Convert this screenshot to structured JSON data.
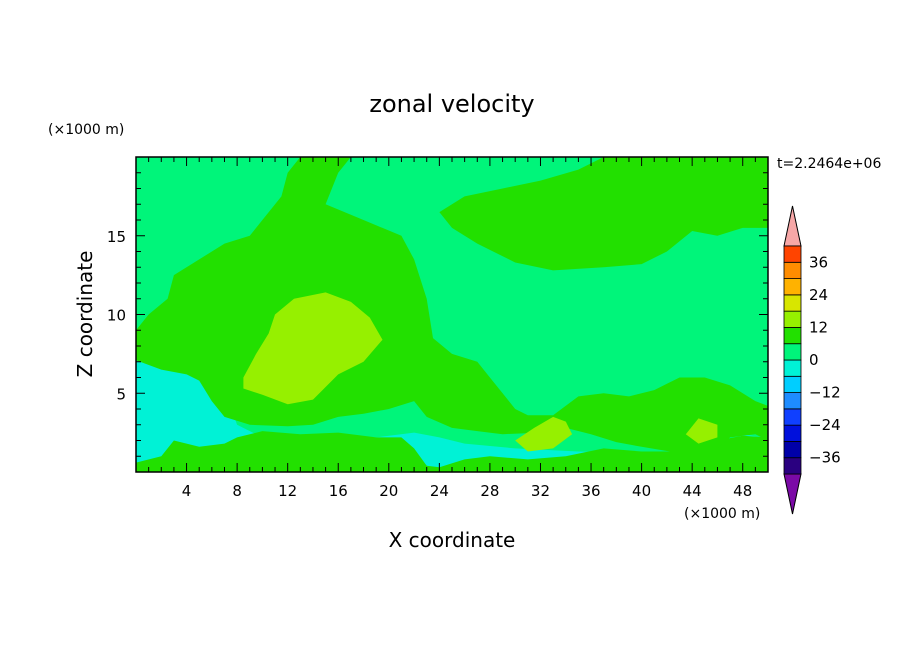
{
  "chart_data": {
    "type": "heatmap",
    "title": "zonal velocity",
    "xlabel": "X coordinate",
    "ylabel": "Z coordinate",
    "x_unit": "(×1000 m)",
    "y_unit": "(×1000 m)",
    "time_label": "t=2.2464e+06",
    "xlim": [
      0,
      50
    ],
    "ylim": [
      0,
      20
    ],
    "x_ticks": [
      4,
      8,
      12,
      16,
      20,
      24,
      28,
      32,
      36,
      40,
      44,
      48
    ],
    "y_ticks": [
      5,
      10,
      15
    ],
    "colorbar": {
      "levels": [
        -42,
        -36,
        -30,
        -24,
        -18,
        -12,
        -6,
        0,
        6,
        12,
        18,
        24,
        30,
        36,
        42
      ],
      "colors": [
        "#7b0aa6",
        "#2a0080",
        "#0000a8",
        "#0010dc",
        "#1040ff",
        "#1e8cff",
        "#00ceff",
        "#00f2d6",
        "#00f57a",
        "#22e000",
        "#96f000",
        "#d8e600",
        "#ffb200",
        "#ff8c00",
        "#ff4400",
        "#ff1a10",
        "#f7a7a7"
      ],
      "tick_labels": [
        {
          "value": 36,
          "label": "36"
        },
        {
          "value": 24,
          "label": "24"
        },
        {
          "value": 12,
          "label": "12"
        },
        {
          "value": 0,
          "label": "0"
        },
        {
          "value": -12,
          "label": "−12"
        },
        {
          "value": -24,
          "label": "−24"
        },
        {
          "value": -36,
          "label": "−36"
        }
      ]
    },
    "field_regions": [
      {
        "level": 0,
        "note": "background band (0 to 6)",
        "points": [
          [
            0,
            0
          ],
          [
            50,
            0
          ],
          [
            50,
            20
          ],
          [
            0,
            20
          ]
        ]
      },
      {
        "level": -6,
        "note": "cyan-green band near bottom",
        "points": [
          [
            0,
            7.5
          ],
          [
            1,
            7.2
          ],
          [
            2.5,
            7.5
          ],
          [
            4.5,
            7
          ],
          [
            6,
            6
          ],
          [
            7,
            5.2
          ],
          [
            8,
            3
          ],
          [
            10,
            2.2
          ],
          [
            13,
            2
          ],
          [
            16,
            2.4
          ],
          [
            19,
            2.2
          ],
          [
            22,
            2.5
          ],
          [
            24,
            2.2
          ],
          [
            26,
            1.8
          ],
          [
            30,
            1.5
          ],
          [
            35,
            1.3
          ],
          [
            40,
            1.2
          ],
          [
            44,
            1.4
          ],
          [
            47,
            1.8
          ],
          [
            48,
            2.4
          ],
          [
            49.5,
            2.2
          ],
          [
            50,
            1.8
          ],
          [
            50,
            0
          ],
          [
            0,
            0
          ]
        ]
      },
      {
        "level": 6,
        "note": "lower green region",
        "points": [
          [
            0,
            0.6
          ],
          [
            2,
            1
          ],
          [
            3,
            2
          ],
          [
            5,
            1.6
          ],
          [
            7,
            1.8
          ],
          [
            8,
            2.2
          ],
          [
            10,
            2.6
          ],
          [
            13,
            2.4
          ],
          [
            16,
            2.5
          ],
          [
            19,
            2.2
          ],
          [
            21,
            2.2
          ],
          [
            22,
            1.5
          ],
          [
            23,
            0.4
          ],
          [
            24,
            0.3
          ],
          [
            26,
            0.8
          ],
          [
            28,
            1.0
          ],
          [
            31,
            0.8
          ],
          [
            34,
            1.0
          ],
          [
            37,
            1.5
          ],
          [
            40,
            1.3
          ],
          [
            43,
            1.3
          ],
          [
            46,
            2.0
          ],
          [
            48,
            2.3
          ],
          [
            50,
            2.2
          ],
          [
            50,
            0
          ],
          [
            0,
            0
          ]
        ]
      },
      {
        "level": 6,
        "note": "main green region",
        "points": [
          [
            0,
            9
          ],
          [
            1,
            10
          ],
          [
            2.5,
            11
          ],
          [
            3,
            12.5
          ],
          [
            5,
            13.5
          ],
          [
            7,
            14.5
          ],
          [
            9,
            15
          ],
          [
            10,
            16
          ],
          [
            11.5,
            17.5
          ],
          [
            12,
            19
          ],
          [
            13,
            20
          ],
          [
            17,
            20
          ],
          [
            16,
            19
          ],
          [
            15,
            17
          ],
          [
            18,
            16
          ],
          [
            21,
            15
          ],
          [
            22,
            13.5
          ],
          [
            23,
            11
          ],
          [
            23.5,
            8.5
          ],
          [
            25,
            7.5
          ],
          [
            27,
            7
          ],
          [
            28,
            6
          ],
          [
            29,
            5
          ],
          [
            30,
            4
          ],
          [
            31,
            3.6
          ],
          [
            33,
            3.6
          ],
          [
            35,
            4.8
          ],
          [
            37,
            5.0
          ],
          [
            39,
            4.8
          ],
          [
            41,
            5.2
          ],
          [
            42,
            5.6
          ],
          [
            43,
            6
          ],
          [
            45,
            6
          ],
          [
            47,
            5.5
          ],
          [
            49,
            4.5
          ],
          [
            50,
            4.2
          ],
          [
            50,
            2
          ],
          [
            49,
            2.4
          ],
          [
            47,
            2.2
          ],
          [
            46,
            1.5
          ],
          [
            43,
            1.2
          ],
          [
            40,
            1.6
          ],
          [
            38,
            1.9
          ],
          [
            36,
            2.4
          ],
          [
            34,
            2.8
          ],
          [
            32,
            2.5
          ],
          [
            29,
            2.4
          ],
          [
            27,
            2.6
          ],
          [
            25,
            2.8
          ],
          [
            23,
            3.5
          ],
          [
            22,
            4.5
          ],
          [
            20,
            4.0
          ],
          [
            18,
            3.7
          ],
          [
            16,
            3.5
          ],
          [
            14,
            3.0
          ],
          [
            12,
            2.9
          ],
          [
            9,
            3.0
          ],
          [
            7,
            3.5
          ],
          [
            6,
            4.5
          ],
          [
            5,
            5.8
          ],
          [
            4,
            6.2
          ],
          [
            2,
            6.5
          ],
          [
            0,
            7.1
          ]
        ]
      },
      {
        "level": 6,
        "note": "upper-right green region",
        "points": [
          [
            24,
            16.5
          ],
          [
            26,
            17.5
          ],
          [
            29,
            18
          ],
          [
            32,
            18.5
          ],
          [
            35,
            19.2
          ],
          [
            37,
            20
          ],
          [
            50,
            20
          ],
          [
            50,
            15.5
          ],
          [
            48,
            15.5
          ],
          [
            46,
            15
          ],
          [
            44,
            15.3
          ],
          [
            42,
            14
          ],
          [
            40,
            13.2
          ],
          [
            37,
            13
          ],
          [
            33,
            12.8
          ],
          [
            30,
            13.3
          ],
          [
            27,
            14.5
          ],
          [
            25,
            15.5
          ]
        ]
      },
      {
        "level": 12,
        "note": "yellow-green patch",
        "points": [
          [
            8.5,
            6
          ],
          [
            9.5,
            7.5
          ],
          [
            10.5,
            8.8
          ],
          [
            11,
            10
          ],
          [
            12.5,
            11
          ],
          [
            15,
            11.4
          ],
          [
            17,
            10.8
          ],
          [
            18.5,
            9.8
          ],
          [
            19.5,
            8.4
          ],
          [
            18,
            7
          ],
          [
            16,
            6.2
          ],
          [
            14,
            4.6
          ],
          [
            12,
            4.3
          ],
          [
            10,
            4.9
          ],
          [
            8.5,
            5.3
          ]
        ]
      },
      {
        "level": 12,
        "note": "small yellow-green patch",
        "points": [
          [
            30,
            2.0
          ],
          [
            31.5,
            2.8
          ],
          [
            33,
            3.5
          ],
          [
            34,
            3.2
          ],
          [
            34.5,
            2.4
          ],
          [
            33,
            1.5
          ],
          [
            31,
            1.3
          ]
        ]
      },
      {
        "level": 12,
        "note": "small yellow-green patch",
        "points": [
          [
            43.5,
            2.4
          ],
          [
            44.5,
            3.4
          ],
          [
            46,
            3.0
          ],
          [
            46,
            2.2
          ],
          [
            44.5,
            1.8
          ]
        ]
      }
    ]
  }
}
